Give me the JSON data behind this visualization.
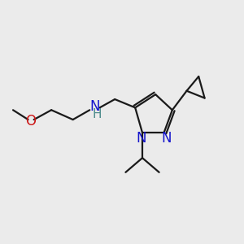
{
  "bg_color": "#ebebeb",
  "bond_color": "#1a1a1a",
  "N_color": "#1414cc",
  "O_color": "#cc1414",
  "font_size": 11,
  "lw": 1.6,
  "fig_w": 3.0,
  "fig_h": 3.0,
  "dpi": 100,
  "xlim": [
    0,
    10
  ],
  "ylim": [
    0,
    10
  ]
}
